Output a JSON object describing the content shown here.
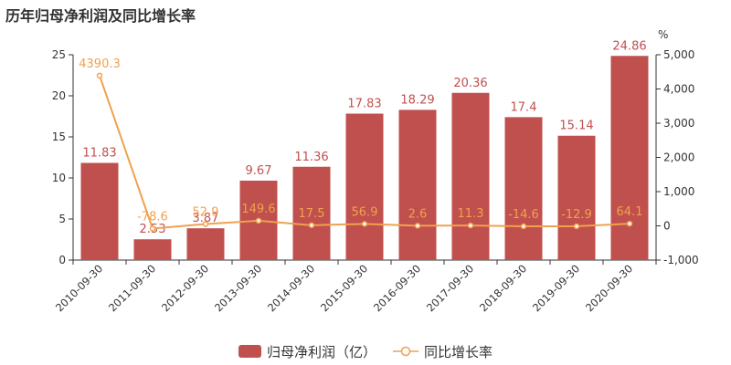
{
  "title": "历年归母净利润及同比增长率",
  "colors": {
    "bar": "#c0504d",
    "line": "#f0a14e",
    "axis": "#333333"
  },
  "chart_data": {
    "type": "bar+line",
    "categories": [
      "2010-09-30",
      "2011-09-30",
      "2012-09-30",
      "2013-09-30",
      "2014-09-30",
      "2015-09-30",
      "2016-09-30",
      "2017-09-30",
      "2018-09-30",
      "2019-09-30",
      "2020-09-30"
    ],
    "series": [
      {
        "name": "归母净利润（亿）",
        "type": "bar",
        "axis": "left",
        "values": [
          11.83,
          2.53,
          3.87,
          9.67,
          11.36,
          17.83,
          18.29,
          20.36,
          17.4,
          15.14,
          24.86
        ],
        "labels": [
          "11.83",
          "2.53",
          "3.87",
          "9.67",
          "11.36",
          "17.83",
          "18.29",
          "20.36",
          "17.4",
          "15.14",
          "24.86"
        ]
      },
      {
        "name": "同比增长率",
        "type": "line",
        "axis": "right",
        "values": [
          4390.3,
          -78.6,
          52.9,
          149.6,
          17.5,
          56.9,
          2.6,
          11.3,
          -14.6,
          -12.9,
          64.1
        ],
        "labels": [
          "4390.3",
          "-78.6",
          "52.9",
          "149.6",
          "17.5",
          "56.9",
          "2.6",
          "11.3",
          "-14.6",
          "-12.9",
          "64.1"
        ]
      }
    ],
    "y_left": {
      "ylim": [
        0,
        25
      ],
      "ticks": [
        "0",
        "5",
        "10",
        "15",
        "20",
        "25"
      ]
    },
    "y_right": {
      "unit": "%",
      "ylim": [
        -1000,
        5000
      ],
      "ticks": [
        "-1,000",
        "0",
        "1,000",
        "2,000",
        "3,000",
        "4,000",
        "5,000"
      ]
    },
    "grid": false,
    "legend_position": "bottom-center"
  }
}
